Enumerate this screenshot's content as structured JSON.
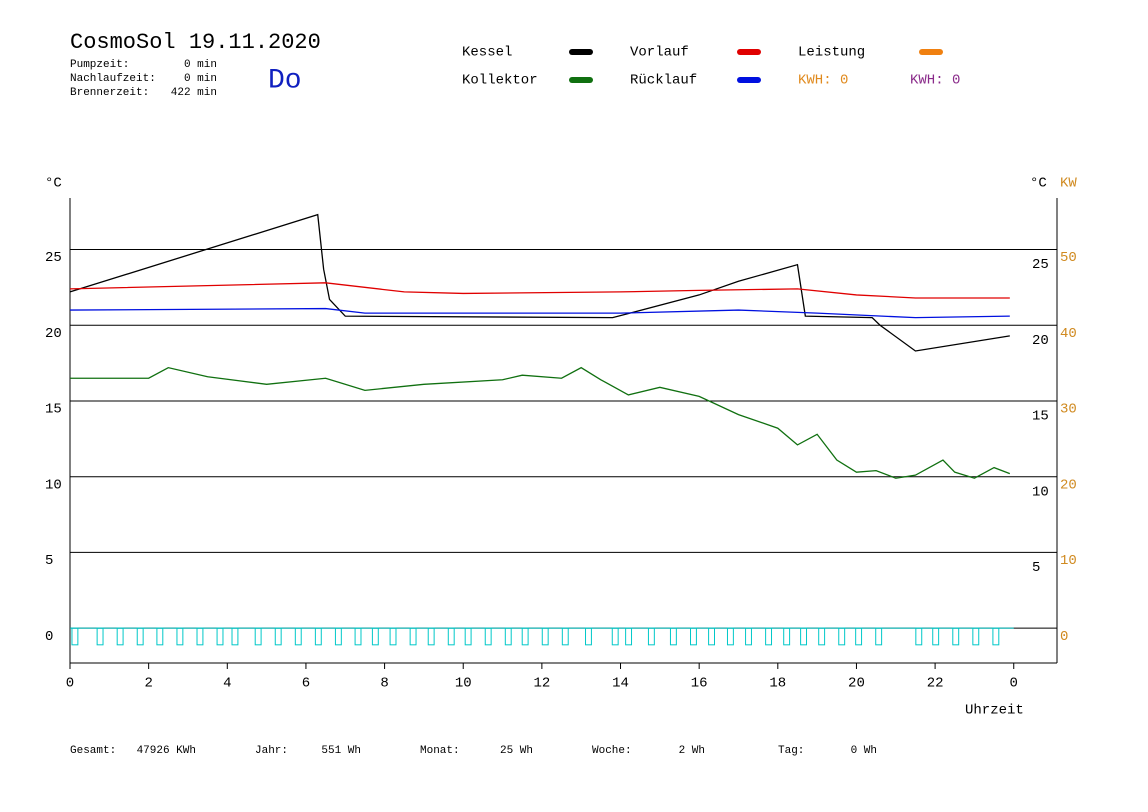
{
  "header": {
    "day": "Do",
    "stats": [
      [
        "Pumpzeit:",
        "0 min"
      ],
      [
        "Nachlaufzeit:",
        "0 min"
      ],
      [
        "Brennerzeit:",
        "422 min"
      ]
    ],
    "kwh": [
      {
        "text": "KWH: 0",
        "color": "#e08a1e"
      },
      {
        "text": "KWH: 0",
        "color": "#8a2a8a"
      }
    ]
  },
  "chart_data": {
    "type": "line",
    "title": "CosmoSol 19.11.2020",
    "ylabel": "°C",
    "y2label_c": "°C",
    "y2label": "KW",
    "xlabel": "Uhrzeit",
    "xlim": [
      0,
      25.1
    ],
    "ylim": [
      -2.3,
      28.4
    ],
    "y2lim": [
      -4.6,
      56.8
    ],
    "xticks": [
      0,
      2,
      4,
      6,
      8,
      10,
      12,
      14,
      16,
      18,
      20,
      22,
      {
        "value": 24,
        "label": "0"
      }
    ],
    "yticks": [
      0,
      5,
      10,
      15,
      20,
      25
    ],
    "y2ticks": [
      0,
      10,
      20,
      30,
      40,
      50
    ],
    "grid": true,
    "series": [
      {
        "name": "Kessel",
        "color": "#000000",
        "x": [
          0,
          6.3,
          6.45,
          6.6,
          7.0,
          13.8,
          16,
          17,
          18.5,
          18.7,
          20.4,
          20.6,
          21.5,
          23.9
        ],
        "values": [
          22.2,
          27.3,
          23.7,
          21.7,
          20.6,
          20.5,
          22.0,
          22.9,
          24.0,
          20.6,
          20.5,
          20.0,
          18.3,
          19.3
        ]
      },
      {
        "name": "Vorlauf",
        "color": "#e00000",
        "x": [
          0,
          6.5,
          8.5,
          10,
          14,
          16,
          18.5,
          20,
          21.5,
          23.9
        ],
        "values": [
          22.4,
          22.8,
          22.2,
          22.1,
          22.2,
          22.3,
          22.4,
          22.0,
          21.8,
          21.8
        ]
      },
      {
        "name": "Leistung",
        "color": "#f08010",
        "axis": "y2",
        "x": [],
        "values": []
      },
      {
        "name": "Kollektor",
        "color": "#107010",
        "x": [
          0,
          2,
          2.5,
          3.5,
          5,
          6.5,
          7.5,
          9,
          11,
          11.5,
          12.5,
          13,
          13.5,
          14.2,
          15,
          16,
          17,
          18,
          18.5,
          19,
          19.5,
          20,
          20.5,
          21,
          21.5,
          22.2,
          22.5,
          23,
          23.5,
          23.9
        ],
        "values": [
          16.5,
          16.5,
          17.2,
          16.6,
          16.1,
          16.5,
          15.7,
          16.1,
          16.4,
          16.7,
          16.5,
          17.2,
          16.4,
          15.4,
          15.9,
          15.3,
          14.1,
          13.2,
          12.1,
          12.8,
          11.1,
          10.3,
          10.4,
          9.9,
          10.1,
          11.1,
          10.3,
          9.9,
          10.6,
          10.2
        ]
      },
      {
        "name": "Rücklauf",
        "color": "#0010e0",
        "x": [
          0,
          6.5,
          7.5,
          14,
          17,
          19,
          21.5,
          23.9
        ],
        "values": [
          21.0,
          21.1,
          20.8,
          20.8,
          21.0,
          20.8,
          20.5,
          20.6
        ]
      }
    ],
    "pulses": {
      "color": "#00c8c8",
      "low": -1.1,
      "starts": [
        0.05,
        0.69,
        1.2,
        1.71,
        2.21,
        2.72,
        3.23,
        3.74,
        4.12,
        4.71,
        5.22,
        5.73,
        6.24,
        6.75,
        7.25,
        7.69,
        8.14,
        8.65,
        9.11,
        9.62,
        10.05,
        10.56,
        11.07,
        11.5,
        12.01,
        12.52,
        13.11,
        13.79,
        14.13,
        14.71,
        15.27,
        15.78,
        16.24,
        16.72,
        17.18,
        17.69,
        18.15,
        18.58,
        19.04,
        19.55,
        19.98,
        20.49,
        21.51,
        21.94,
        22.45,
        22.96,
        23.47
      ],
      "ends": [
        0.2,
        0.84,
        1.35,
        1.86,
        2.36,
        2.87,
        3.38,
        3.89,
        4.27,
        4.86,
        5.37,
        5.88,
        6.39,
        6.9,
        7.4,
        7.84,
        8.29,
        8.8,
        9.26,
        9.77,
        10.2,
        10.71,
        11.22,
        11.65,
        12.16,
        12.67,
        13.26,
        13.94,
        14.28,
        14.86,
        15.42,
        15.93,
        16.39,
        16.87,
        17.33,
        17.84,
        18.3,
        18.73,
        19.19,
        19.7,
        20.13,
        20.64,
        21.66,
        22.09,
        22.6,
        23.11,
        23.62
      ]
    }
  },
  "footer": [
    [
      "Gesamt:",
      "47926 KWh"
    ],
    [
      "Jahr:",
      "551 Wh"
    ],
    [
      "Monat:",
      "25 Wh"
    ],
    [
      "Woche:",
      "2 Wh"
    ],
    [
      "Tag:",
      "0 Wh"
    ]
  ]
}
